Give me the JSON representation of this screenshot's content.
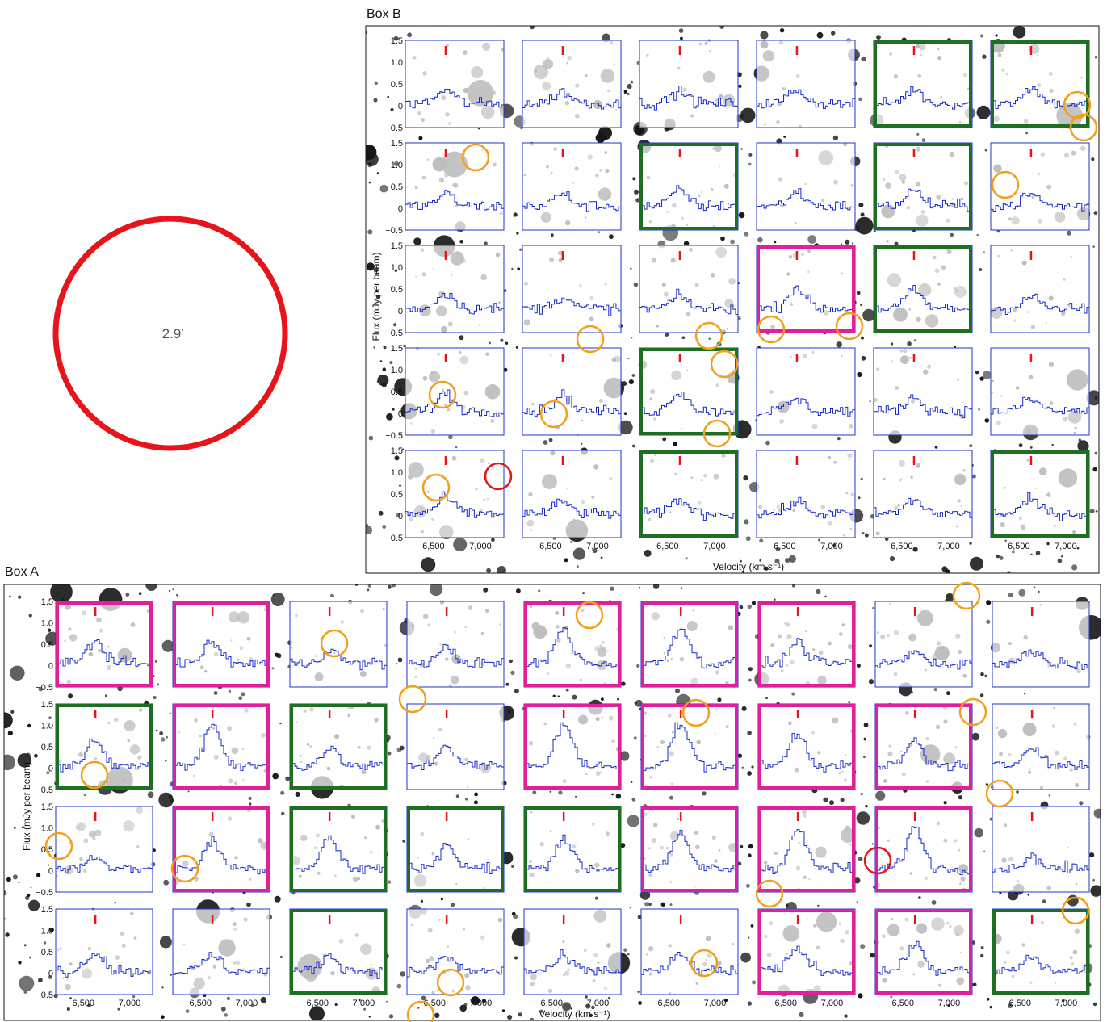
{
  "scale_circle": {
    "label": "2.9′",
    "color": "#e8141c"
  },
  "colors": {
    "frame": "#111111",
    "spectrum": "#1428c8",
    "panel_border": "#2233cc",
    "green": "#1e6e23",
    "magenta": "#e0209a",
    "marker": "#e8141c",
    "orange_circle": "#f2a01c",
    "red_circle": "#e01818",
    "star": "#151515"
  },
  "box_b": {
    "title": "Box B",
    "ylabel": "Flux (mJy per beam)",
    "xlabel": "Velocity (km s⁻¹)",
    "yticks": [
      "1.5",
      "1.0",
      "0.5",
      "0",
      "−0.5"
    ],
    "xticks": [
      "6,500",
      "7,000"
    ],
    "rows": 5,
    "cols": 6,
    "borders": [
      [
        "none",
        "none",
        "none",
        "none",
        "green",
        "green"
      ],
      [
        "none",
        "none",
        "green",
        "none",
        "green",
        "none"
      ],
      [
        "none",
        "none",
        "none",
        "magenta",
        "green",
        "none"
      ],
      [
        "none",
        "none",
        "green",
        "none",
        "none",
        "none"
      ],
      [
        "none",
        "none",
        "green",
        "none",
        "none",
        "green"
      ]
    ]
  },
  "box_a": {
    "title": "Box A",
    "ylabel": "Flux (mJy per beam)",
    "xlabel": "Velocity (km s⁻¹)",
    "yticks": [
      "1.5",
      "1.0",
      "0.5",
      "0",
      "−0.5"
    ],
    "xticks": [
      "6,500",
      "7,000"
    ],
    "rows": 4,
    "cols": 9,
    "borders": [
      [
        "magenta",
        "magenta",
        "none",
        "none",
        "magenta",
        "magenta",
        "magenta",
        "none",
        "none"
      ],
      [
        "green",
        "magenta",
        "green",
        "none",
        "magenta",
        "magenta",
        "magenta",
        "magenta",
        "none"
      ],
      [
        "none",
        "magenta",
        "green",
        "green",
        "green",
        "magenta",
        "magenta",
        "magenta",
        "none"
      ],
      [
        "none",
        "none",
        "green",
        "none",
        "none",
        "none",
        "magenta",
        "magenta",
        "green"
      ]
    ]
  },
  "chart_data": {
    "type": "line",
    "title": "",
    "xlabel": "Velocity (km s⁻¹)",
    "ylabel": "Flux (mJy per beam)",
    "xlim": [
      6200,
      7250
    ],
    "ylim": [
      -0.5,
      1.5
    ],
    "marker_velocity": 6630,
    "note_series": "Each panel shows an HI spectrum (blue step line) over an optical sky cutout; line peaks are estimated from gridlines.",
    "box_b_peaks": [
      [
        0.35,
        0.3,
        0.3,
        0.35,
        0.35,
        0.4
      ],
      [
        0.3,
        0.3,
        0.4,
        0.35,
        0.4,
        0.3
      ],
      [
        0.4,
        0.3,
        0.3,
        0.55,
        0.45,
        0.3
      ],
      [
        0.45,
        0.4,
        0.5,
        0.3,
        0.35,
        0.3
      ],
      [
        0.4,
        0.3,
        0.35,
        0.3,
        0.35,
        0.35
      ]
    ],
    "box_a_peaks": [
      [
        0.6,
        0.55,
        0.35,
        0.4,
        0.9,
        0.95,
        0.55,
        0.3,
        0.35
      ],
      [
        0.6,
        1.1,
        0.45,
        0.55,
        1.1,
        1.1,
        0.85,
        0.65,
        0.55
      ],
      [
        0.3,
        0.7,
        0.8,
        0.6,
        0.8,
        0.85,
        1.0,
        1.05,
        0.3
      ],
      [
        0.5,
        0.4,
        0.4,
        0.35,
        0.35,
        0.4,
        0.6,
        0.7,
        0.35
      ]
    ]
  }
}
